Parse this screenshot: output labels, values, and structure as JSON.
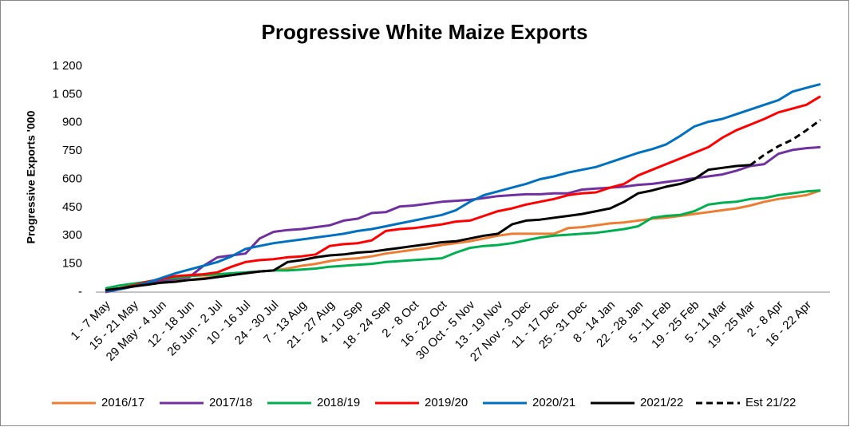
{
  "chart_data": {
    "type": "line",
    "title": "Progressive White Maize Exports",
    "y_label": "Progressive Exports '000",
    "categories": [
      "1 - 7 May",
      null,
      "15 - 21 May",
      null,
      "29 May - 4 Jun",
      null,
      "12 - 18 Jun",
      null,
      "26 Jun - 2 Jul",
      null,
      "10 - 16 Jul",
      null,
      "24 - 30 Jul",
      null,
      "7 - 13 Aug",
      null,
      "21 - 27 Aug",
      null,
      "4 - 10 Sep",
      null,
      "18 - 24 Sep",
      null,
      "2 - 8 Oct",
      null,
      "16 - 22 Oct",
      null,
      "30 Oct - 5 Nov",
      null,
      "13 - 19 Nov",
      null,
      "27 Nov - 3 Dec",
      null,
      "11 - 17 Dec",
      null,
      "25 - 31 Dec",
      null,
      "8 - 14 Jan",
      null,
      "22 - 28 Jan",
      null,
      "5 - 11 Feb",
      null,
      "19 - 25 Feb",
      null,
      "5 - 11 Mar",
      null,
      "19 - 25 Mar",
      null,
      "2 - 8 Apr",
      null,
      "16 - 22 Apr",
      null
    ],
    "series": [
      {
        "name": "2016/17",
        "color": "#ed7d31",
        "values": [
          10,
          20,
          30,
          40,
          50,
          60,
          65,
          75,
          85,
          95,
          100,
          110,
          115,
          125,
          140,
          150,
          165,
          175,
          180,
          190,
          205,
          215,
          225,
          235,
          250,
          260,
          270,
          285,
          300,
          310,
          310,
          310,
          310,
          340,
          345,
          355,
          365,
          370,
          380,
          390,
          395,
          405,
          415,
          425,
          435,
          445,
          460,
          480,
          495,
          505,
          515,
          540
        ]
      },
      {
        "name": "2017/18",
        "color": "#7030a0",
        "values": [
          0,
          15,
          30,
          45,
          60,
          70,
          80,
          140,
          185,
          195,
          205,
          285,
          320,
          330,
          335,
          345,
          355,
          380,
          390,
          420,
          425,
          455,
          460,
          470,
          480,
          485,
          490,
          500,
          510,
          515,
          520,
          520,
          525,
          525,
          545,
          550,
          555,
          560,
          570,
          575,
          585,
          595,
          605,
          615,
          625,
          645,
          670,
          680,
          735,
          755,
          765,
          770
        ]
      },
      {
        "name": "2018/19",
        "color": "#00b050",
        "values": [
          20,
          35,
          45,
          55,
          70,
          75,
          85,
          90,
          95,
          100,
          105,
          110,
          115,
          115,
          120,
          125,
          135,
          140,
          145,
          150,
          160,
          165,
          170,
          175,
          180,
          210,
          235,
          245,
          250,
          260,
          275,
          290,
          300,
          305,
          310,
          315,
          325,
          335,
          350,
          395,
          405,
          410,
          430,
          465,
          475,
          480,
          495,
          500,
          515,
          525,
          535,
          540
        ]
      },
      {
        "name": "2019/20",
        "color": "#ff0000",
        "values": [
          10,
          20,
          35,
          55,
          70,
          85,
          90,
          95,
          105,
          135,
          160,
          170,
          175,
          185,
          190,
          200,
          245,
          255,
          260,
          275,
          325,
          335,
          340,
          350,
          360,
          375,
          380,
          405,
          430,
          445,
          465,
          480,
          495,
          515,
          525,
          530,
          555,
          575,
          620,
          650,
          680,
          710,
          740,
          770,
          820,
          860,
          890,
          920,
          955,
          975,
          995,
          1040
        ]
      },
      {
        "name": "2020/21",
        "color": "#0070c0",
        "values": [
          5,
          15,
          30,
          50,
          75,
          100,
          120,
          140,
          160,
          190,
          230,
          245,
          260,
          270,
          280,
          290,
          300,
          310,
          325,
          335,
          350,
          365,
          380,
          395,
          410,
          435,
          480,
          515,
          535,
          555,
          575,
          600,
          615,
          635,
          650,
          665,
          690,
          715,
          740,
          760,
          785,
          830,
          880,
          905,
          920,
          945,
          970,
          995,
          1020,
          1065,
          1085,
          1105
        ]
      },
      {
        "name": "2021/22",
        "color": "#000000",
        "values": [
          10,
          20,
          30,
          40,
          50,
          55,
          65,
          70,
          80,
          90,
          100,
          110,
          115,
          160,
          170,
          185,
          195,
          200,
          210,
          215,
          225,
          235,
          245,
          255,
          265,
          270,
          285,
          300,
          310,
          360,
          380,
          385,
          395,
          405,
          415,
          430,
          445,
          480,
          525,
          540,
          560,
          575,
          600,
          650,
          660,
          670,
          675,
          null,
          null,
          null,
          null,
          null
        ]
      },
      {
        "name": "Est 21/22",
        "color": "#000000",
        "dashed": true,
        "values": [
          null,
          null,
          null,
          null,
          null,
          null,
          null,
          null,
          null,
          null,
          null,
          null,
          null,
          null,
          null,
          null,
          null,
          null,
          null,
          null,
          null,
          null,
          null,
          null,
          null,
          null,
          null,
          null,
          null,
          null,
          null,
          null,
          null,
          null,
          null,
          null,
          null,
          null,
          null,
          null,
          null,
          null,
          null,
          null,
          null,
          null,
          675,
          730,
          775,
          810,
          860,
          915
        ]
      }
    ],
    "ylim": [
      0,
      1200
    ],
    "yticks": [
      {
        "value": 0,
        "label": "-"
      },
      150,
      300,
      450,
      600,
      750,
      900,
      {
        "value": 1050,
        "label": "1 050"
      },
      {
        "value": 1200,
        "label": "1 200"
      }
    ],
    "grid": false,
    "legend": "bottom"
  }
}
